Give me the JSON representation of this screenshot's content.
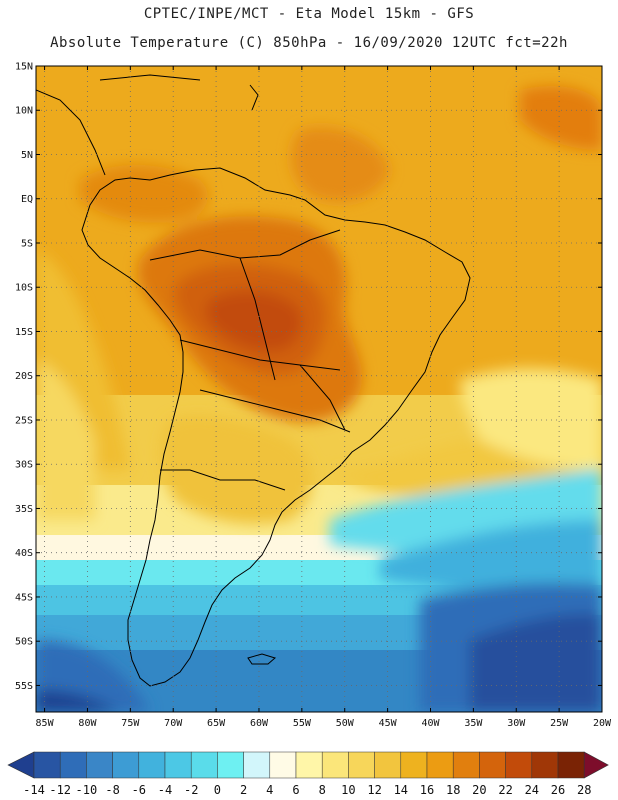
{
  "header": {
    "line1": "CPTEC/INPE/MCT -  Eta Model 15km - GFS",
    "line2": "Absolute Temperature (C) 850hPa - 16/09/2020 12UTC fct=22h"
  },
  "map": {
    "lat_labels": [
      "15N",
      "10N",
      "5N",
      "EQ",
      "5S",
      "10S",
      "15S",
      "20S",
      "25S",
      "30S",
      "35S",
      "40S",
      "45S",
      "50S",
      "55S"
    ],
    "lon_labels": [
      "85W",
      "80W",
      "75W",
      "70W",
      "65W",
      "60W",
      "55W",
      "50W",
      "45W",
      "40W",
      "35W",
      "30W",
      "25W",
      "20W"
    ],
    "lat_range": [
      15,
      -58
    ],
    "lon_range": [
      -86,
      -20
    ],
    "field_description_units": "degC"
  },
  "colorbar": {
    "ticks": [
      "-14",
      "-12",
      "-10",
      "-8",
      "-6",
      "-4",
      "-2",
      "0",
      "2",
      "4",
      "6",
      "8",
      "10",
      "12",
      "14",
      "16",
      "18",
      "20",
      "22",
      "24",
      "26",
      "28"
    ],
    "colors": [
      "#1f3f8f",
      "#2855a3",
      "#2f6db8",
      "#3a86c7",
      "#3d9cd4",
      "#41b2dd",
      "#4cc8e5",
      "#5adcea",
      "#6ef0f2",
      "#d2f6fb",
      "#fffbe6",
      "#fff6a8",
      "#fbe67a",
      "#f7d65a",
      "#f2c53e",
      "#eeb21f",
      "#ec9c12",
      "#e17f0e",
      "#d4640c",
      "#c24b0a",
      "#a03707",
      "#7a2305",
      "#7d0d2b"
    ]
  }
}
